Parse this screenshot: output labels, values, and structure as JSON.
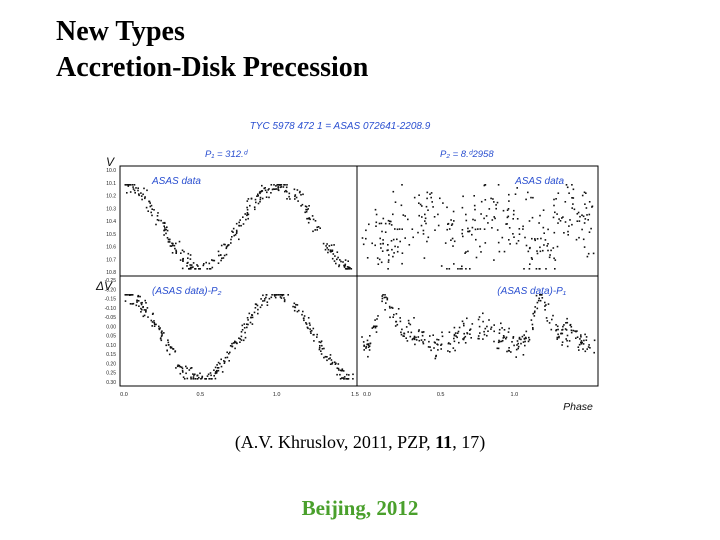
{
  "slide": {
    "title_line1": "New Types",
    "title_line2": "Accretion-Disk Precession",
    "caption_prefix": "(A.V. Khruslov, 2011, PZP, ",
    "caption_volume": "11",
    "caption_suffix": ", 17)",
    "footer": "Beijing, 2012"
  },
  "chart_data": {
    "type": "scatter",
    "title": "TYC 5978 472 1 = ASAS 072641-2208.9",
    "period1_label": "P₁ = 312.ᵈ",
    "period2_label": "P₂ = 8.ᵈ2958",
    "xlabel": "Phase",
    "x_ticks": [
      "0.0",
      "0.5",
      "1.0",
      "1.5",
      "0.0",
      "0.5",
      "1.0"
    ],
    "upper_panel": {
      "ylabel": "V",
      "y_ticks": [
        "10.0",
        "10.1",
        "10.2",
        "10.3",
        "10.4",
        "10.5",
        "10.6",
        "10.7",
        "10.8"
      ],
      "left_label": "ASAS data",
      "right_label": "ASAS data"
    },
    "lower_panel": {
      "ylabel": "ΔV",
      "y_ticks": [
        "-0.25",
        "-0.20",
        "-0.15",
        "-0.10",
        "-0.05",
        "0.00",
        "0.05",
        "0.10",
        "0.15",
        "0.20",
        "0.25",
        "0.30"
      ],
      "left_label": "(ASAS data)-P₂",
      "right_label": "(ASAS data)-P₁"
    },
    "series": [
      {
        "panel": "upper-left",
        "period": "P1",
        "phase_range": [
          0,
          1.5
        ],
        "mag_range": [
          10.2,
          10.6
        ],
        "max_phase": 1.0,
        "scatter": 0.04,
        "n_points": 320
      },
      {
        "panel": "upper-right",
        "period": "P2",
        "phase_range": [
          0,
          1.5
        ],
        "mag_range": [
          10.25,
          10.55
        ],
        "scatter": 0.12,
        "n_points": 320
      },
      {
        "panel": "lower-left",
        "period": "P1",
        "phase_range": [
          0,
          1.5
        ],
        "mag_range": [
          -0.18,
          0.15
        ],
        "max_phase": 1.0,
        "scatter": 0.03,
        "n_points": 320
      },
      {
        "panel": "lower-right",
        "period": "P2",
        "phase_range": [
          0,
          1.5
        ],
        "mag_range": [
          -0.1,
          0.18
        ],
        "min_phase": [
          0.2,
          0.7,
          1.2
        ],
        "scatter": 0.04,
        "n_points": 320
      }
    ],
    "grid": false,
    "colors": {
      "points": "#111111",
      "panel_label": "#2a4fd0",
      "frame": "#000000"
    }
  }
}
